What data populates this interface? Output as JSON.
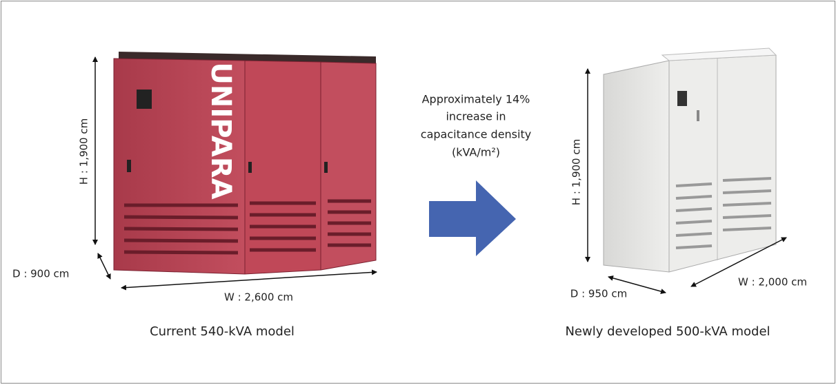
{
  "left": {
    "height_label": "H : 1,900 cm",
    "depth_label": "D : 900 cm",
    "width_label": "W : 2,600 cm",
    "brand": "UNIPARA",
    "caption": "Current 540-kVA model"
  },
  "middle": {
    "lines": [
      "Approximately 14%",
      "increase in",
      "capacitance density",
      "(kVA/m²)"
    ]
  },
  "right": {
    "height_label": "H : 1,900 cm",
    "depth_label": "D : 950 cm",
    "width_label": "W : 2,000 cm",
    "caption": "Newly developed 500-kVA model"
  }
}
